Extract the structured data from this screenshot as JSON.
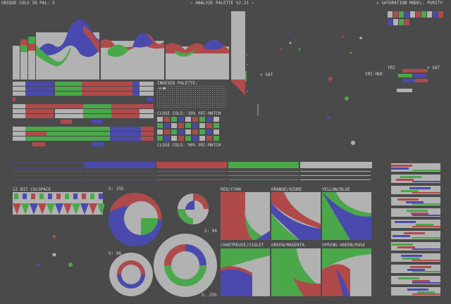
{
  "header": {
    "unique_cols": "UNIQUE COLS IN PAL: 5",
    "title": "~ ANALYZE PALETTE V2.21 ~",
    "saturation_model": "× SATURATION MODEL: PURITY"
  },
  "colors": {
    "bg": "#4a4a4a",
    "gray": "#b2b2b2",
    "red": "#b04a4a",
    "green": "#4aa84a",
    "blue": "#4a4aae",
    "text": "#d8d8d8"
  },
  "palette": [
    "#b2b2b2",
    "#b04a4a",
    "#4aa84a",
    "#4a4aae",
    "#4a4a4a"
  ],
  "labels": {
    "sat_left": "× SAT",
    "tri_hue": "tRI-HUE",
    "tri": "tRI",
    "sat_right": "× SAT",
    "indexed_palette": "INDEXED PALETTE:",
    "close_cols_1": "CLOSE COLS: 10% tRI-MATCH",
    "close_cols_2": "CLOSE COLS: 90% tRI-MATCH",
    "colspace_12bit": "12 BIT COLSPACE",
    "s255_a": "S: 255",
    "s96_a": "S: 96",
    "s96_b": "S: 96",
    "s255_b": "S: 255"
  },
  "gradients": [
    {
      "label": "RED/CYAN"
    },
    {
      "label": "ORANGE/AZURE"
    },
    {
      "label": "YELLOW/BLUE"
    },
    {
      "label": "CHARTREUSE/VIOLET"
    },
    {
      "label": "GREEN/MAGENTA"
    },
    {
      "label": "SPRING-GREEN/ROSE"
    }
  ]
}
